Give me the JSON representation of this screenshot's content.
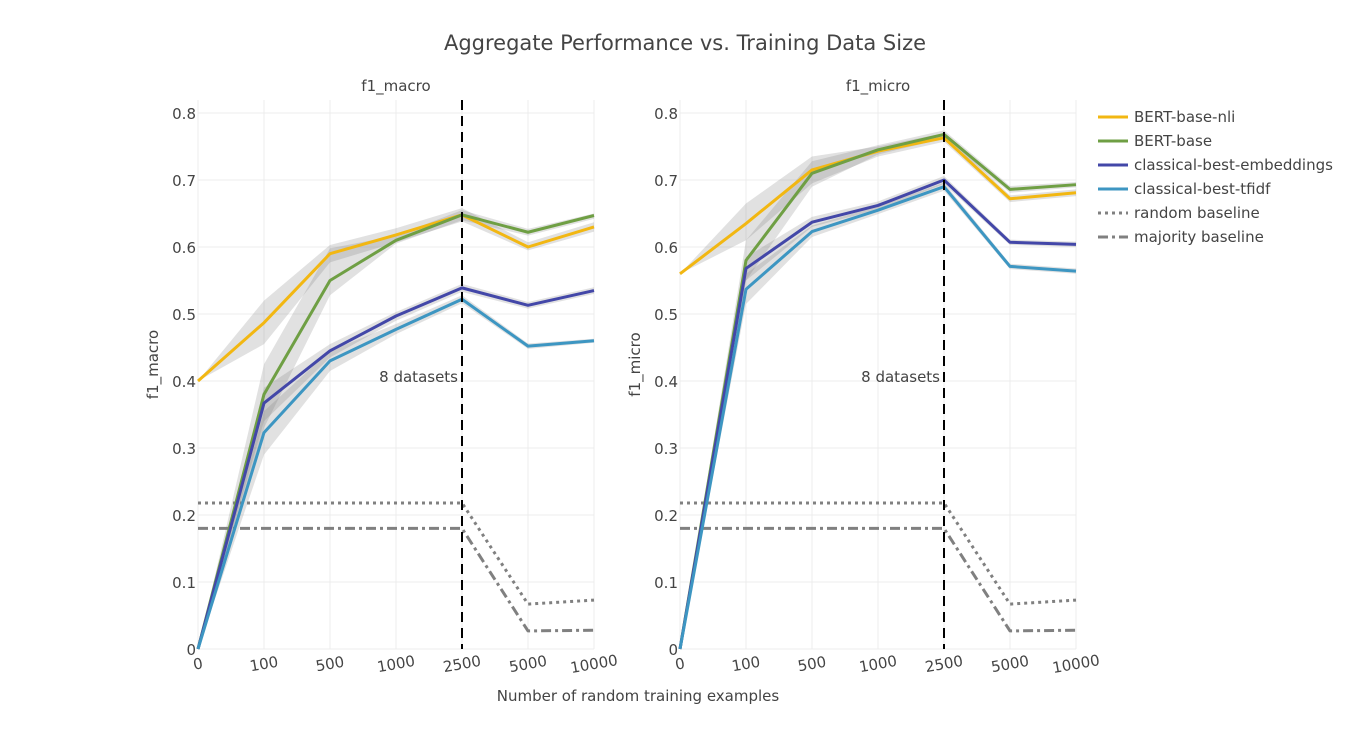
{
  "chart_data": {
    "type": "line",
    "title": "Aggregate Performance vs. Training Data Size",
    "xlabel": "Number of random training examples",
    "x_ticks": [
      "0",
      "100",
      "500",
      "1000",
      "2500",
      "5000",
      "10000"
    ],
    "x_positions": [
      0,
      1,
      2,
      3,
      4,
      5,
      6
    ],
    "ylim": [
      0,
      0.8
    ],
    "y_ticks": [
      "0",
      "0.1",
      "0.2",
      "0.3",
      "0.4",
      "0.5",
      "0.6",
      "0.7",
      "0.8"
    ],
    "grid": true,
    "legend_placement": "top-right",
    "vline": {
      "x": 2500,
      "x_index": 4,
      "label": "8 datasets"
    },
    "series_style": [
      {
        "name": "BERT-base-nli",
        "color": "#f2b712",
        "dash": "solid"
      },
      {
        "name": "BERT-base",
        "color": "#6f9f44",
        "dash": "solid"
      },
      {
        "name": "classical-best-embeddings",
        "color": "#4347a8",
        "dash": "solid"
      },
      {
        "name": "classical-best-tfidf",
        "color": "#3d96c2",
        "dash": "solid"
      },
      {
        "name": "random baseline",
        "color": "#808080",
        "dash": "dot"
      },
      {
        "name": "majority baseline",
        "color": "#808080",
        "dash": "dashdot"
      }
    ],
    "panels": [
      {
        "subtitle": "f1_macro",
        "ylabel": "f1_macro",
        "series": [
          {
            "name": "BERT-base-nli",
            "x": [
              0,
              100,
              500,
              1000,
              2500,
              5000,
              10000
            ],
            "values": [
              0.4,
              0.487,
              0.59,
              0.618,
              0.648,
              0.6,
              0.63
            ],
            "ci": [
              [
                0.4,
                0.4
              ],
              [
                0.455,
                0.52
              ],
              [
                0.577,
                0.603
              ],
              [
                0.607,
                0.628
              ],
              [
                0.638,
                0.658
              ],
              [
                0.595,
                0.607
              ],
              [
                0.623,
                0.637
              ]
            ]
          },
          {
            "name": "BERT-base",
            "x": [
              0,
              100,
              500,
              1000,
              2500,
              5000,
              10000
            ],
            "values": [
              0.0,
              0.38,
              0.55,
              0.61,
              0.648,
              0.622,
              0.647
            ],
            "ci": [
              [
                0.0,
                0.0
              ],
              [
                0.33,
                0.425
              ],
              [
                0.528,
                0.598
              ],
              [
                0.605,
                0.617
              ],
              [
                0.64,
                0.655
              ],
              [
                0.617,
                0.627
              ],
              [
                0.642,
                0.65
              ]
            ]
          },
          {
            "name": "classical-best-embeddings",
            "x": [
              0,
              100,
              500,
              1000,
              2500,
              5000,
              10000
            ],
            "values": [
              0.0,
              0.367,
              0.445,
              0.497,
              0.539,
              0.513,
              0.535
            ],
            "ci": [
              [
                0.0,
                0.0
              ],
              [
                0.34,
                0.39
              ],
              [
                0.435,
                0.455
              ],
              [
                0.49,
                0.503
              ],
              [
                0.533,
                0.545
              ],
              [
                0.508,
                0.518
              ],
              [
                0.53,
                0.54
              ]
            ]
          },
          {
            "name": "classical-best-tfidf",
            "x": [
              0,
              100,
              500,
              1000,
              2500,
              5000,
              10000
            ],
            "values": [
              0.0,
              0.323,
              0.43,
              0.477,
              0.522,
              0.452,
              0.46
            ],
            "ci": [
              [
                0.0,
                0.0
              ],
              [
                0.29,
                0.355
              ],
              [
                0.415,
                0.445
              ],
              [
                0.47,
                0.485
              ],
              [
                0.516,
                0.528
              ],
              [
                0.448,
                0.456
              ],
              [
                0.457,
                0.463
              ]
            ]
          },
          {
            "name": "random baseline",
            "x": [
              0,
              100,
              500,
              1000,
              2500,
              5000,
              10000
            ],
            "values": [
              0.218,
              0.218,
              0.218,
              0.218,
              0.218,
              0.067,
              0.073
            ]
          },
          {
            "name": "majority baseline",
            "x": [
              0,
              100,
              500,
              1000,
              2500,
              5000,
              10000
            ],
            "values": [
              0.18,
              0.18,
              0.18,
              0.18,
              0.18,
              0.027,
              0.028
            ]
          }
        ]
      },
      {
        "subtitle": "f1_micro",
        "ylabel": "f1_micro",
        "series": [
          {
            "name": "BERT-base-nli",
            "x": [
              0,
              100,
              500,
              1000,
              2500,
              5000,
              10000
            ],
            "values": [
              0.56,
              0.635,
              0.715,
              0.743,
              0.763,
              0.672,
              0.681
            ],
            "ci": [
              [
                0.56,
                0.56
              ],
              [
                0.61,
                0.665
              ],
              [
                0.695,
                0.735
              ],
              [
                0.735,
                0.75
              ],
              [
                0.757,
                0.77
              ],
              [
                0.667,
                0.677
              ],
              [
                0.676,
                0.686
              ]
            ]
          },
          {
            "name": "BERT-base",
            "x": [
              0,
              100,
              500,
              1000,
              2500,
              5000,
              10000
            ],
            "values": [
              0.0,
              0.58,
              0.71,
              0.745,
              0.768,
              0.686,
              0.693
            ],
            "ci": [
              [
                0.0,
                0.0
              ],
              [
                0.55,
                0.61
              ],
              [
                0.69,
                0.728
              ],
              [
                0.738,
                0.752
              ],
              [
                0.762,
                0.774
              ],
              [
                0.681,
                0.691
              ],
              [
                0.689,
                0.697
              ]
            ]
          },
          {
            "name": "classical-best-embeddings",
            "x": [
              0,
              100,
              500,
              1000,
              2500,
              5000,
              10000
            ],
            "values": [
              0.0,
              0.568,
              0.637,
              0.662,
              0.7,
              0.607,
              0.604
            ],
            "ci": [
              [
                0.0,
                0.0
              ],
              [
                0.55,
                0.585
              ],
              [
                0.63,
                0.645
              ],
              [
                0.656,
                0.668
              ],
              [
                0.694,
                0.706
              ],
              [
                0.603,
                0.611
              ],
              [
                0.6,
                0.608
              ]
            ]
          },
          {
            "name": "classical-best-tfidf",
            "x": [
              0,
              100,
              500,
              1000,
              2500,
              5000,
              10000
            ],
            "values": [
              0.0,
              0.537,
              0.623,
              0.655,
              0.69,
              0.571,
              0.564
            ],
            "ci": [
              [
                0.0,
                0.0
              ],
              [
                0.515,
                0.56
              ],
              [
                0.615,
                0.632
              ],
              [
                0.649,
                0.661
              ],
              [
                0.684,
                0.696
              ],
              [
                0.567,
                0.575
              ],
              [
                0.56,
                0.568
              ]
            ]
          },
          {
            "name": "random baseline",
            "x": [
              0,
              100,
              500,
              1000,
              2500,
              5000,
              10000
            ],
            "values": [
              0.218,
              0.218,
              0.218,
              0.218,
              0.218,
              0.067,
              0.073
            ]
          },
          {
            "name": "majority baseline",
            "x": [
              0,
              100,
              500,
              1000,
              2500,
              5000,
              10000
            ],
            "values": [
              0.18,
              0.18,
              0.18,
              0.18,
              0.18,
              0.027,
              0.028
            ]
          }
        ]
      }
    ]
  }
}
